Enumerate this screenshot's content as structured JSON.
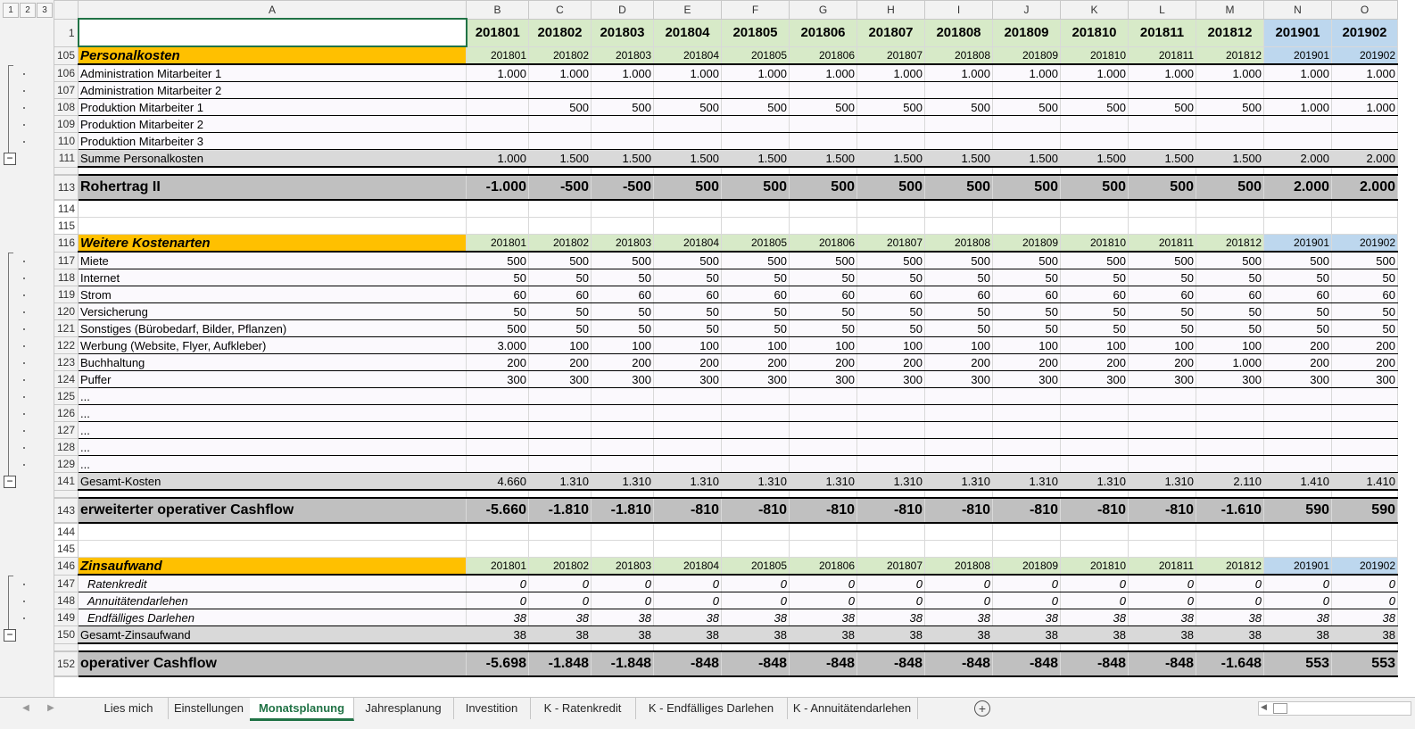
{
  "outline_levels": [
    "1",
    "2",
    "3"
  ],
  "columns": [
    "A",
    "B",
    "C",
    "D",
    "E",
    "F",
    "G",
    "H",
    "I",
    "J",
    "K",
    "L",
    "M",
    "N",
    "O"
  ],
  "months": [
    "201801",
    "201802",
    "201803",
    "201804",
    "201805",
    "201806",
    "201807",
    "201808",
    "201809",
    "201810",
    "201811",
    "201812",
    "201901",
    "201902"
  ],
  "rows": [
    {
      "r": "1",
      "type": "hdr"
    },
    {
      "r": "105",
      "type": "sec",
      "label": "Personalkosten"
    },
    {
      "r": "106",
      "type": "item",
      "label": "Administration Mitarbeiter 1",
      "values": [
        "1.000",
        "1.000",
        "1.000",
        "1.000",
        "1.000",
        "1.000",
        "1.000",
        "1.000",
        "1.000",
        "1.000",
        "1.000",
        "1.000",
        "1.000",
        "1.000"
      ]
    },
    {
      "r": "107",
      "type": "item",
      "label": "Administration Mitarbeiter 2",
      "values": [
        "",
        "",
        "",
        "",
        "",
        "",
        "",
        "",
        "",
        "",
        "",
        "",
        "",
        ""
      ]
    },
    {
      "r": "108",
      "type": "item",
      "label": "Produktion Mitarbeiter 1",
      "values": [
        "",
        "500",
        "500",
        "500",
        "500",
        "500",
        "500",
        "500",
        "500",
        "500",
        "500",
        "500",
        "1.000",
        "1.000"
      ]
    },
    {
      "r": "109",
      "type": "item",
      "label": "Produktion Mitarbeiter 2",
      "values": [
        "",
        "",
        "",
        "",
        "",
        "",
        "",
        "",
        "",
        "",
        "",
        "",
        "",
        ""
      ]
    },
    {
      "r": "110",
      "type": "item",
      "label": "Produktion Mitarbeiter 3",
      "values": [
        "",
        "",
        "",
        "",
        "",
        "",
        "",
        "",
        "",
        "",
        "",
        "",
        "",
        ""
      ]
    },
    {
      "r": "111",
      "type": "sum",
      "label": "Summe Personalkosten",
      "values": [
        "1.000",
        "1.500",
        "1.500",
        "1.500",
        "1.500",
        "1.500",
        "1.500",
        "1.500",
        "1.500",
        "1.500",
        "1.500",
        "1.500",
        "2.000",
        "2.000"
      ]
    },
    {
      "r": "",
      "type": "gap"
    },
    {
      "r": "113",
      "type": "big",
      "label": "Rohertrag II",
      "values": [
        "-1.000",
        "-500",
        "-500",
        "500",
        "500",
        "500",
        "500",
        "500",
        "500",
        "500",
        "500",
        "500",
        "2.000",
        "2.000"
      ]
    },
    {
      "r": "114",
      "type": "emp"
    },
    {
      "r": "115",
      "type": "emp"
    },
    {
      "r": "116",
      "type": "sec",
      "label": "Weitere Kostenarten"
    },
    {
      "r": "117",
      "type": "item",
      "label": "Miete",
      "values": [
        "500",
        "500",
        "500",
        "500",
        "500",
        "500",
        "500",
        "500",
        "500",
        "500",
        "500",
        "500",
        "500",
        "500"
      ]
    },
    {
      "r": "118",
      "type": "item",
      "label": "Internet",
      "values": [
        "50",
        "50",
        "50",
        "50",
        "50",
        "50",
        "50",
        "50",
        "50",
        "50",
        "50",
        "50",
        "50",
        "50"
      ]
    },
    {
      "r": "119",
      "type": "item",
      "label": "Strom",
      "values": [
        "60",
        "60",
        "60",
        "60",
        "60",
        "60",
        "60",
        "60",
        "60",
        "60",
        "60",
        "60",
        "60",
        "60"
      ]
    },
    {
      "r": "120",
      "type": "item",
      "label": "Versicherung",
      "values": [
        "50",
        "50",
        "50",
        "50",
        "50",
        "50",
        "50",
        "50",
        "50",
        "50",
        "50",
        "50",
        "50",
        "50"
      ]
    },
    {
      "r": "121",
      "type": "item",
      "label": "Sonstiges (Bürobedarf, Bilder, Pflanzen)",
      "values": [
        "500",
        "50",
        "50",
        "50",
        "50",
        "50",
        "50",
        "50",
        "50",
        "50",
        "50",
        "50",
        "50",
        "50"
      ]
    },
    {
      "r": "122",
      "type": "item",
      "label": "Werbung (Website, Flyer, Aufkleber)",
      "values": [
        "3.000",
        "100",
        "100",
        "100",
        "100",
        "100",
        "100",
        "100",
        "100",
        "100",
        "100",
        "100",
        "200",
        "200"
      ]
    },
    {
      "r": "123",
      "type": "item",
      "label": "Buchhaltung",
      "values": [
        "200",
        "200",
        "200",
        "200",
        "200",
        "200",
        "200",
        "200",
        "200",
        "200",
        "200",
        "1.000",
        "200",
        "200"
      ]
    },
    {
      "r": "124",
      "type": "item",
      "label": "Puffer",
      "values": [
        "300",
        "300",
        "300",
        "300",
        "300",
        "300",
        "300",
        "300",
        "300",
        "300",
        "300",
        "300",
        "300",
        "300"
      ]
    },
    {
      "r": "125",
      "type": "item",
      "label": "...",
      "values": [
        "",
        "",
        "",
        "",
        "",
        "",
        "",
        "",
        "",
        "",
        "",
        "",
        "",
        ""
      ]
    },
    {
      "r": "126",
      "type": "item",
      "label": "...",
      "values": [
        "",
        "",
        "",
        "",
        "",
        "",
        "",
        "",
        "",
        "",
        "",
        "",
        "",
        ""
      ]
    },
    {
      "r": "127",
      "type": "item",
      "label": "...",
      "values": [
        "",
        "",
        "",
        "",
        "",
        "",
        "",
        "",
        "",
        "",
        "",
        "",
        "",
        ""
      ]
    },
    {
      "r": "128",
      "type": "item",
      "label": "...",
      "values": [
        "",
        "",
        "",
        "",
        "",
        "",
        "",
        "",
        "",
        "",
        "",
        "",
        "",
        ""
      ]
    },
    {
      "r": "129",
      "type": "item",
      "label": "...",
      "values": [
        "",
        "",
        "",
        "",
        "",
        "",
        "",
        "",
        "",
        "",
        "",
        "",
        "",
        ""
      ]
    },
    {
      "r": "141",
      "type": "sum",
      "label": "Gesamt-Kosten",
      "values": [
        "4.660",
        "1.310",
        "1.310",
        "1.310",
        "1.310",
        "1.310",
        "1.310",
        "1.310",
        "1.310",
        "1.310",
        "1.310",
        "2.110",
        "1.410",
        "1.410"
      ]
    },
    {
      "r": "",
      "type": "gap"
    },
    {
      "r": "143",
      "type": "big",
      "label": "erweiterter operativer Cashflow",
      "values": [
        "-5.660",
        "-1.810",
        "-1.810",
        "-810",
        "-810",
        "-810",
        "-810",
        "-810",
        "-810",
        "-810",
        "-810",
        "-1.610",
        "590",
        "590"
      ]
    },
    {
      "r": "144",
      "type": "emp"
    },
    {
      "r": "145",
      "type": "emp"
    },
    {
      "r": "146",
      "type": "sec",
      "label": "Zinsaufwand"
    },
    {
      "r": "147",
      "type": "item",
      "italic": true,
      "label": "Ratenkredit",
      "values": [
        "0",
        "0",
        "0",
        "0",
        "0",
        "0",
        "0",
        "0",
        "0",
        "0",
        "0",
        "0",
        "0",
        "0"
      ]
    },
    {
      "r": "148",
      "type": "item",
      "italic": true,
      "label": "Annuitätendarlehen",
      "values": [
        "0",
        "0",
        "0",
        "0",
        "0",
        "0",
        "0",
        "0",
        "0",
        "0",
        "0",
        "0",
        "0",
        "0"
      ]
    },
    {
      "r": "149",
      "type": "item",
      "italic": true,
      "label": "Endfälliges Darlehen",
      "values": [
        "38",
        "38",
        "38",
        "38",
        "38",
        "38",
        "38",
        "38",
        "38",
        "38",
        "38",
        "38",
        "38",
        "38"
      ]
    },
    {
      "r": "150",
      "type": "sum",
      "label": "Gesamt-Zinsaufwand",
      "values": [
        "38",
        "38",
        "38",
        "38",
        "38",
        "38",
        "38",
        "38",
        "38",
        "38",
        "38",
        "38",
        "38",
        "38"
      ]
    },
    {
      "r": "",
      "type": "gap"
    },
    {
      "r": "152",
      "type": "big",
      "label": "operativer Cashflow",
      "values": [
        "-5.698",
        "-1.848",
        "-1.848",
        "-848",
        "-848",
        "-848",
        "-848",
        "-848",
        "-848",
        "-848",
        "-848",
        "-1.648",
        "553",
        "553"
      ]
    }
  ],
  "sheet_tabs": [
    "Lies mich",
    "Einstellungen",
    "Monatsplanung",
    "Jahresplanung",
    "Investition",
    "K - Ratenkredit",
    "K - Endfälliges Darlehen",
    "K - Annuitätendarlehen"
  ],
  "active_tab": "Monatsplanung",
  "add_sheet_symbol": "+",
  "collapse_symbol": "−",
  "colors": {
    "accent": "#217346",
    "section_title": "#ffc000",
    "month_2018": "#d7eac8",
    "month_2019": "#bdd7ee",
    "sum_row": "#d9d9d9",
    "big_row": "#c0c0c0"
  }
}
